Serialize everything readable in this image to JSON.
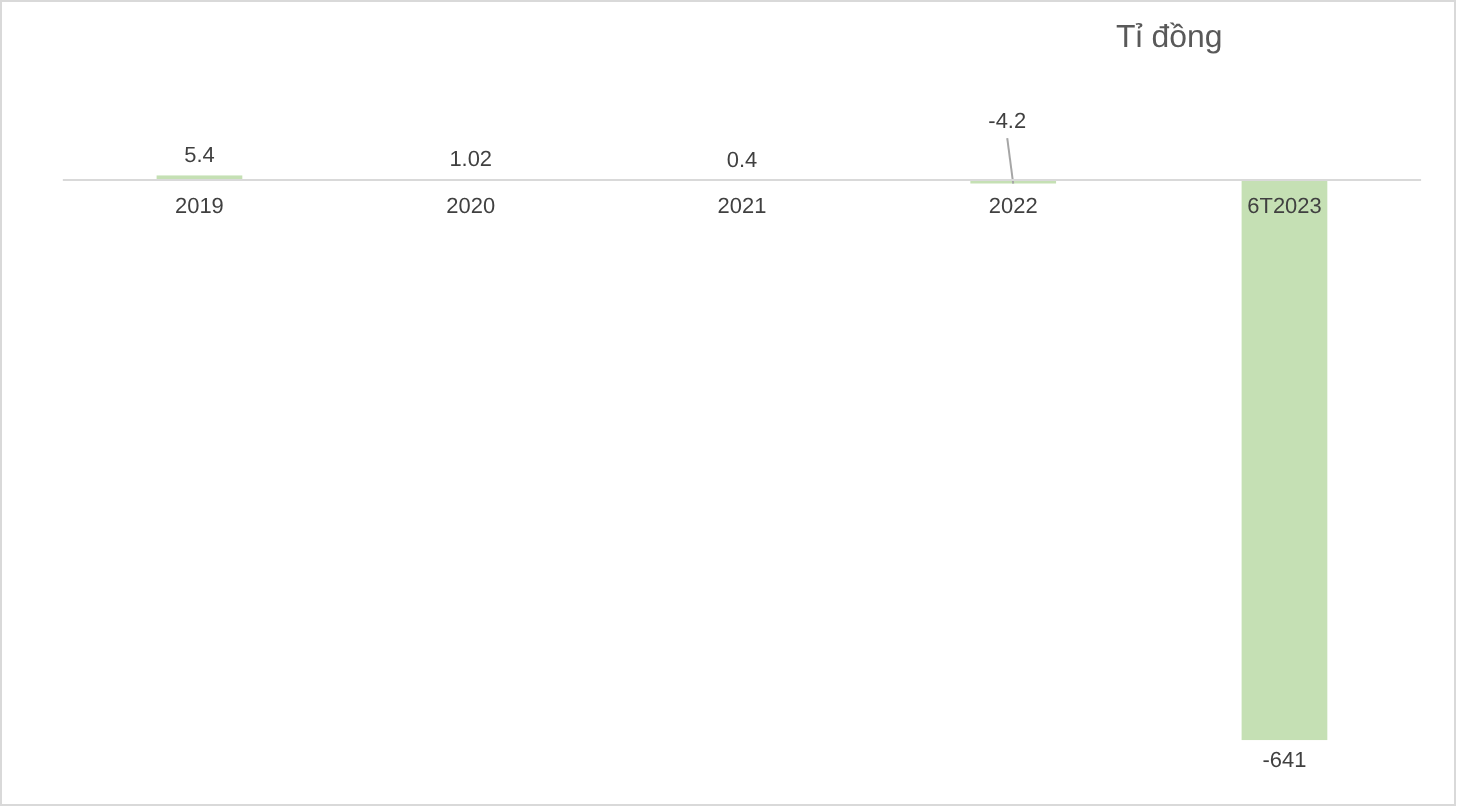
{
  "chart_data": {
    "type": "bar",
    "title": "Tỉ đồng",
    "categories": [
      "2019",
      "2020",
      "2021",
      "2022",
      "6T2023"
    ],
    "values": [
      5.4,
      1.02,
      0.4,
      -4.2,
      -641
    ],
    "color": "#c5e0b4",
    "data_labels": true,
    "tick_labels": "x"
  }
}
